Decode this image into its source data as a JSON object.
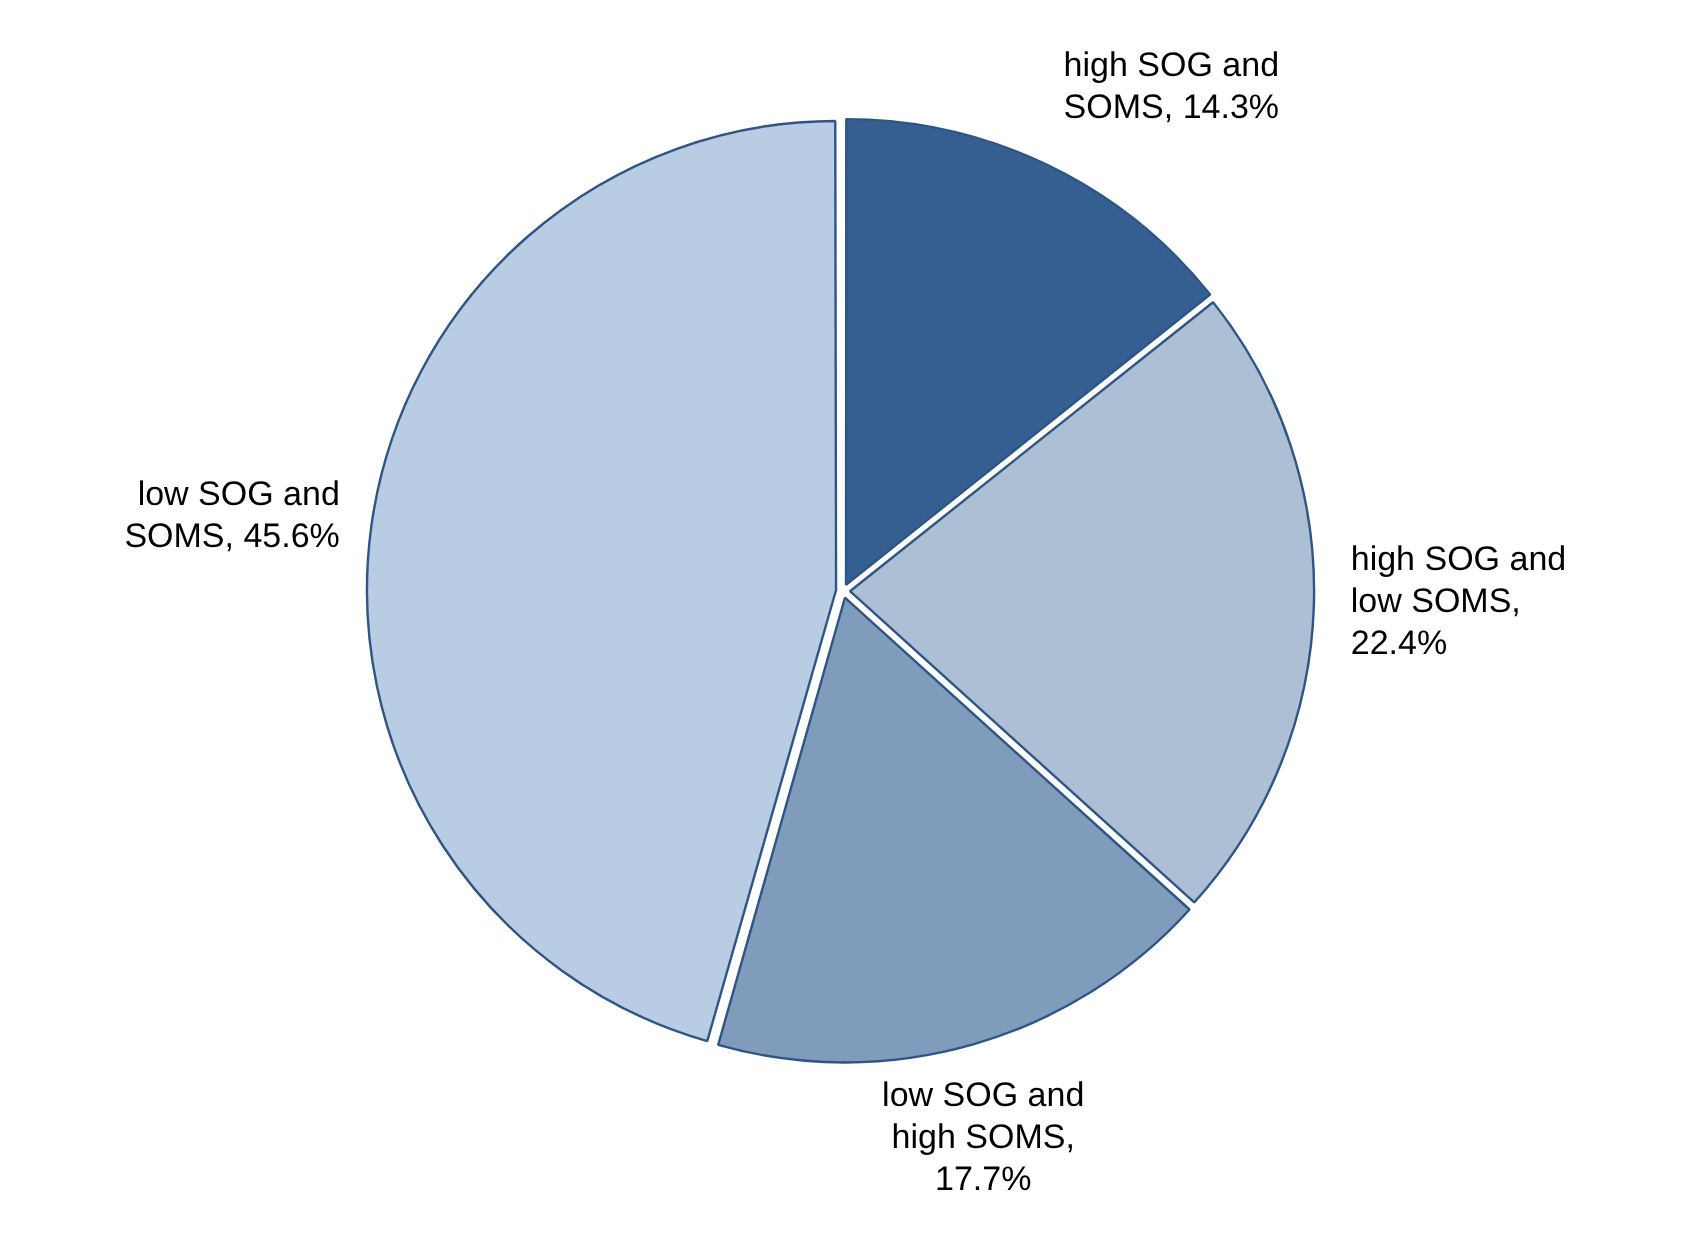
{
  "chart_data": {
    "type": "pie",
    "categories": [
      "high SOG and SOMS",
      "high SOG and low SOMS",
      "low SOG and high SOMS",
      "low SOG and SOMS"
    ],
    "values": [
      14.3,
      22.4,
      17.7,
      45.6
    ],
    "value_labels": [
      ", 14.3%",
      ", 22.4%",
      ", 17.7%",
      ", 45.6%"
    ],
    "colors": [
      "#355f91",
      "#adbfd4",
      "#7f9cbd",
      "#b8cce4"
    ],
    "legend": false
  }
}
